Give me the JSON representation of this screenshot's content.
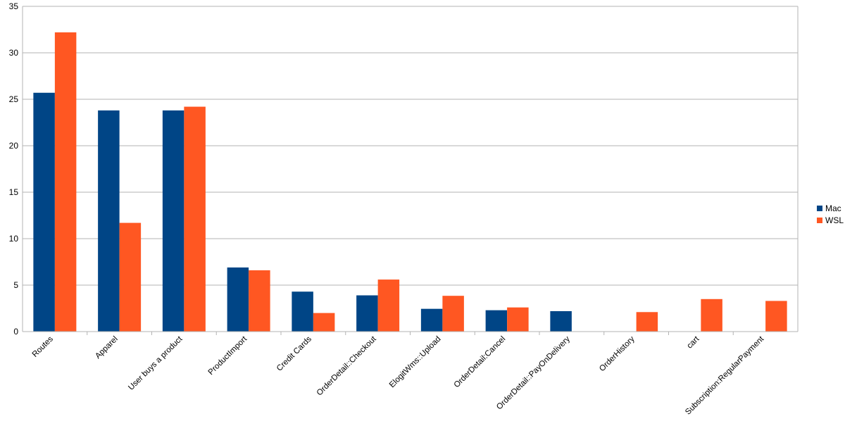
{
  "chart_data": {
    "type": "bar",
    "title": "",
    "xlabel": "",
    "ylabel": "",
    "ylim": [
      0,
      35
    ],
    "yticks": [
      0,
      5,
      10,
      15,
      20,
      25,
      30,
      35
    ],
    "grid": true,
    "legend_position": "right",
    "categories": [
      "Routes",
      "Apparel",
      "User buys a product",
      "ProductImport",
      "Credit Cards",
      "OrderDetail::Checkout",
      "ElogitWms::Upload",
      "OrderDetail:Cancel",
      "OrderDetail::PayOnDelivery",
      "OrderHistory",
      "cart",
      "Subscription:RegularPayment"
    ],
    "series": [
      {
        "name": "Mac",
        "color": "#004586",
        "values": [
          25.7,
          23.8,
          23.8,
          6.9,
          4.3,
          3.9,
          2.45,
          2.3,
          2.2,
          null,
          null,
          null
        ]
      },
      {
        "name": "WSL",
        "color": "#ff5722",
        "values": [
          32.2,
          11.7,
          24.2,
          6.6,
          2.0,
          5.6,
          3.85,
          2.6,
          null,
          2.1,
          3.5,
          3.3
        ]
      }
    ]
  }
}
